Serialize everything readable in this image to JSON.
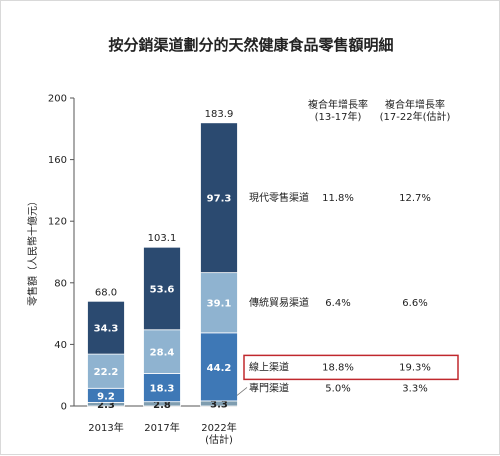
{
  "chart_data": {
    "type": "bar",
    "stacked": true,
    "title": "按分銷渠道劃分的天然健康食品零售額明細",
    "ylabel": "零售額（人民幣十億元）",
    "ylim": [
      0,
      200
    ],
    "yticks": [
      0,
      40,
      80,
      120,
      160,
      200
    ],
    "categories": [
      {
        "label": "2013年",
        "sublabel": ""
      },
      {
        "label": "2017年",
        "sublabel": ""
      },
      {
        "label": "2022年",
        "sublabel": "(估計)"
      }
    ],
    "totals": [
      "68.0",
      "103.1",
      "183.9"
    ],
    "series": [
      {
        "name": "專門渠道",
        "values": [
          2.3,
          2.8,
          3.3
        ],
        "labels": [
          "2.3",
          "2.8",
          "3.3"
        ],
        "color": "#7f9db0"
      },
      {
        "name": "線上渠道",
        "values": [
          9.2,
          18.3,
          44.2
        ],
        "labels": [
          "9.2",
          "18.3",
          "44.2"
        ],
        "color": "#3e78b6"
      },
      {
        "name": "傳統貿易渠道",
        "values": [
          22.2,
          28.4,
          39.1
        ],
        "labels": [
          "22.2",
          "28.4",
          "39.1"
        ],
        "color": "#8fb3d0"
      },
      {
        "name": "現代零售渠道",
        "values": [
          34.3,
          53.6,
          97.3
        ],
        "labels": [
          "34.3",
          "53.6",
          "97.3"
        ],
        "color": "#2b4a70"
      }
    ],
    "cagr_table": {
      "headers": [
        {
          "line1": "複合年增長率",
          "line2": "(13-17年)"
        },
        {
          "line1": "複合年增長率",
          "line2": "(17-22年(估計)"
        }
      ],
      "rows": [
        {
          "label": "現代零售渠道",
          "values": [
            "11.8%",
            "12.7%"
          ],
          "highlight": false
        },
        {
          "label": "傳統貿易渠道",
          "values": [
            "6.4%",
            "6.6%"
          ],
          "highlight": false
        },
        {
          "label": "線上渠道",
          "values": [
            "18.8%",
            "19.3%"
          ],
          "highlight": true
        },
        {
          "label": "專門渠道",
          "values": [
            "5.0%",
            "3.3%"
          ],
          "highlight": false
        }
      ]
    },
    "highlight_color": "#c0282d",
    "axis_color": "#555555"
  }
}
